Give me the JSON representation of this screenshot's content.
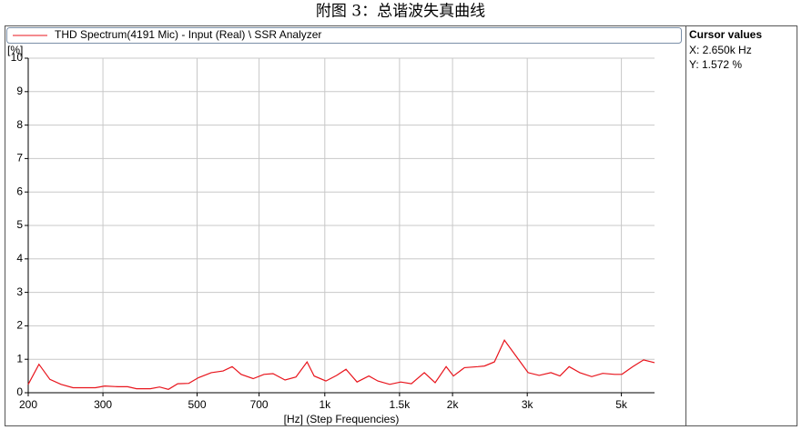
{
  "cursor": {
    "title": "Cursor values",
    "x": "X: 2.650k Hz",
    "y": "Y: 1.572 %"
  },
  "chart_data": {
    "type": "line",
    "title": "附图 3：总谐波失真曲线",
    "x_label": "[Hz] (Step Frequencies)",
    "y_label": "[%]",
    "x_scale": "log",
    "grid": true,
    "xlim": [
      200,
      5985
    ],
    "ylim": [
      0,
      10
    ],
    "xticks": [
      200,
      300,
      500,
      700,
      {
        "value": 1000,
        "label": "1k"
      },
      {
        "value": 1500,
        "label": "1.5k"
      },
      {
        "value": 2000,
        "label": "2k"
      },
      {
        "value": 3000,
        "label": "3k"
      },
      {
        "value": 5000,
        "label": "5k"
      }
    ],
    "yticks": [
      0,
      1,
      2,
      3,
      4,
      5,
      6,
      7,
      8,
      9,
      10
    ],
    "x": [
      200,
      212,
      225,
      239,
      255,
      274,
      288,
      303,
      326,
      343,
      360,
      388,
      408,
      428,
      450,
      478,
      504,
      540,
      576,
      605,
      635,
      678,
      719,
      755,
      806,
      855,
      908,
      944,
      1006,
      1067,
      1122,
      1191,
      1270,
      1334,
      1422,
      1510,
      1600,
      1716,
      1820,
      1932,
      2010,
      2134,
      2296,
      2378,
      2510,
      2650,
      2840,
      3014,
      3200,
      3412,
      3582,
      3766,
      3990,
      4256,
      4518,
      4820,
      5012,
      5320,
      5640,
      5985
    ],
    "series": [
      {
        "name": "THD Spectrum(4191 Mic) - Input (Real) \\ SSR Analyzer",
        "color": "#e8141c",
        "values": [
          0.25,
          0.85,
          0.4,
          0.25,
          0.15,
          0.15,
          0.15,
          0.2,
          0.18,
          0.18,
          0.12,
          0.12,
          0.17,
          0.1,
          0.27,
          0.28,
          0.45,
          0.6,
          0.65,
          0.78,
          0.55,
          0.42,
          0.55,
          0.57,
          0.38,
          0.47,
          0.92,
          0.5,
          0.35,
          0.52,
          0.7,
          0.32,
          0.5,
          0.35,
          0.25,
          0.32,
          0.27,
          0.6,
          0.3,
          0.78,
          0.5,
          0.75,
          0.78,
          0.8,
          0.92,
          1.572,
          1.05,
          0.6,
          0.52,
          0.6,
          0.5,
          0.78,
          0.6,
          0.48,
          0.58,
          0.55,
          0.55,
          0.78,
          0.98,
          0.9
        ]
      }
    ]
  }
}
